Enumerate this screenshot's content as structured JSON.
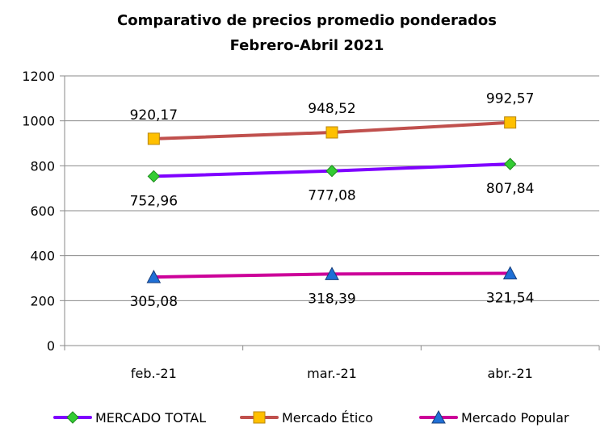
{
  "chart_data": {
    "type": "line",
    "title": "Comparativo de precios promedio ponderados",
    "subtitle": "Febrero-Abril 2021",
    "xlabel": "",
    "ylabel": "",
    "categories": [
      "feb.-21",
      "mar.-21",
      "abr.-21"
    ],
    "ylim": [
      0,
      1200
    ],
    "yticks": [
      0,
      200,
      400,
      600,
      800,
      1000,
      1200
    ],
    "grid": true,
    "legend_position": "bottom",
    "series": [
      {
        "name": "MERCADO TOTAL",
        "values": [
          752.96,
          777.08,
          807.84
        ],
        "labels": [
          "752,96",
          "777,08",
          "807,84"
        ],
        "line_color": "#7f00ff",
        "marker_color": "#33cc33",
        "marker": "diamond",
        "label_position": "below"
      },
      {
        "name": "Mercado Ético",
        "values": [
          920.17,
          948.52,
          992.57
        ],
        "labels": [
          "920,17",
          "948,52",
          "992,57"
        ],
        "line_color": "#c0504d",
        "marker_color": "#ffc000",
        "marker": "square",
        "label_position": "above"
      },
      {
        "name": "Mercado Popular",
        "values": [
          305.08,
          318.39,
          321.54
        ],
        "labels": [
          "305,08",
          "318,39",
          "321,54"
        ],
        "line_color": "#cc0099",
        "marker_color": "#1f6fd6",
        "marker": "triangle",
        "label_position": "below"
      }
    ]
  }
}
